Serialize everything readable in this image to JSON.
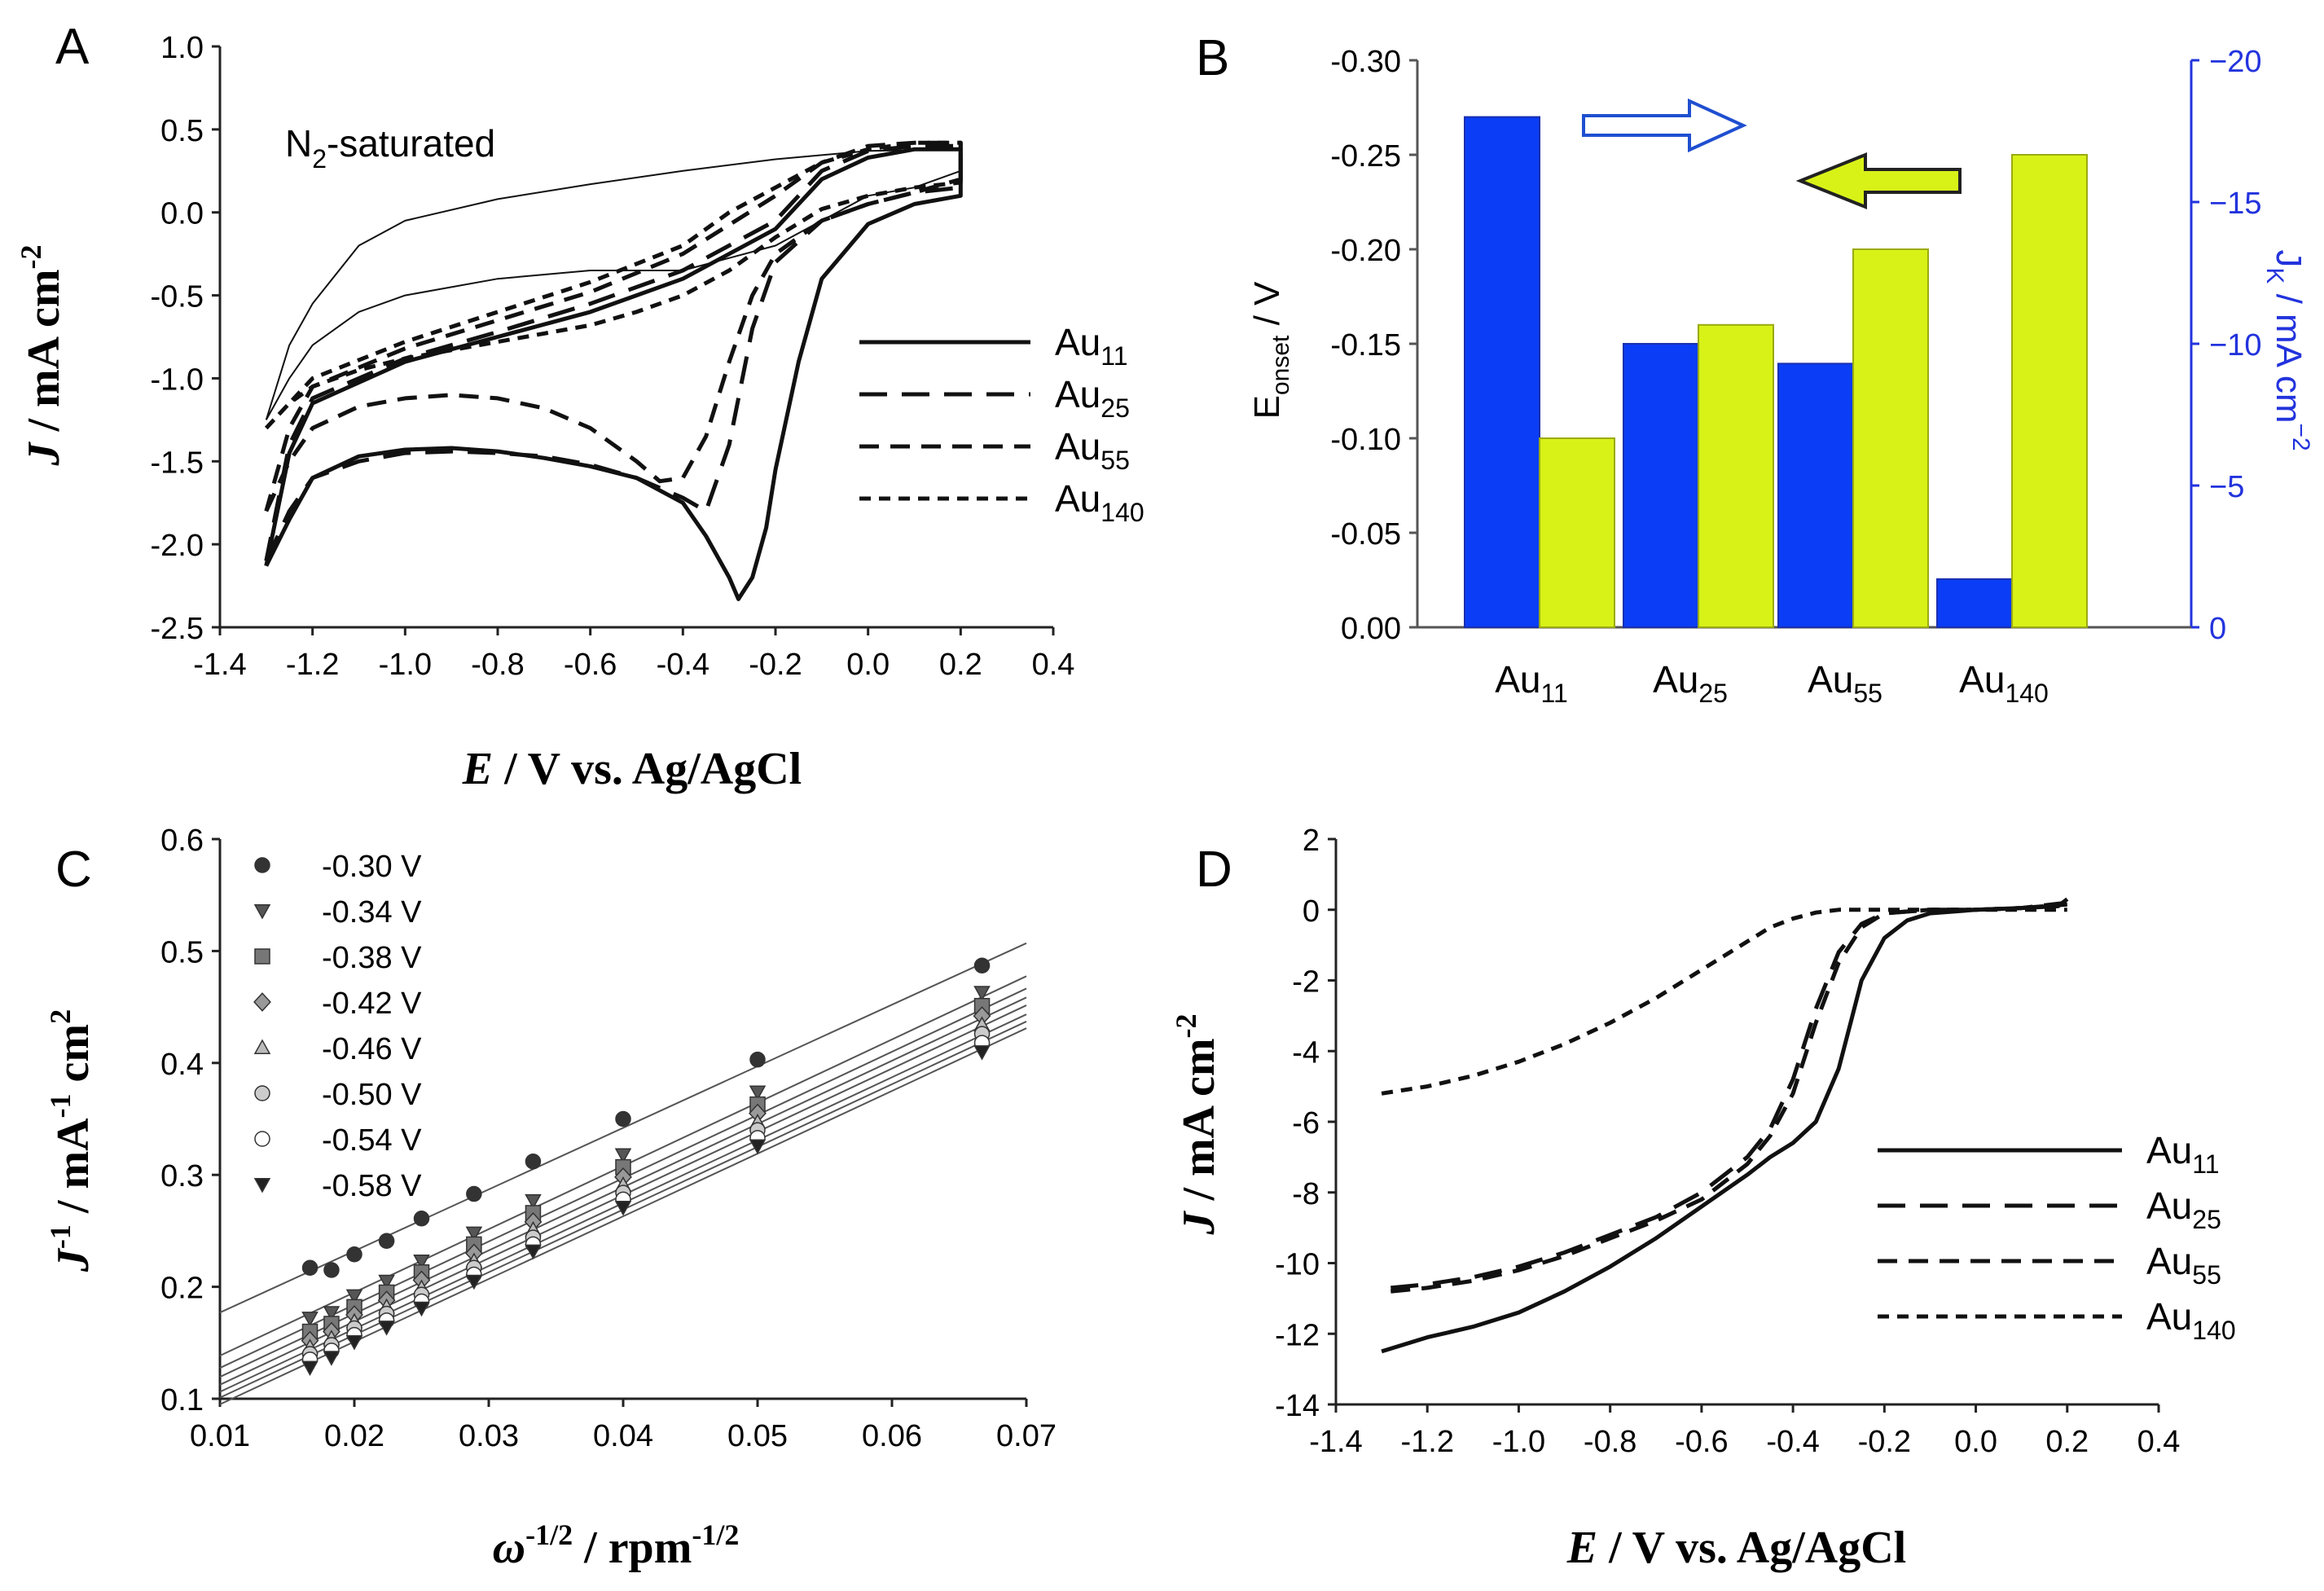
{
  "figure": {
    "panel_labels": [
      "A",
      "B",
      "C",
      "D"
    ]
  },
  "chart_data": [
    {
      "panel": "A",
      "type": "line",
      "xlabel": {
        "italic": "E",
        "rest": " / V vs. Ag/AgCl"
      },
      "ylabel": {
        "italic": "J",
        "rest": " / mA cm",
        "sup": "-2"
      },
      "xlim": [
        -1.4,
        0.4
      ],
      "ylim": [
        -2.5,
        1.0
      ],
      "xticks": [
        "-1.4",
        "-1.2",
        "-1.0",
        "-0.8",
        "-0.6",
        "-0.4",
        "-0.2",
        "0.0",
        "0.2",
        "0.4"
      ],
      "yticks": [
        "-2.5",
        "-2.0",
        "-1.5",
        "-1.0",
        "-0.5",
        "0.0",
        "0.5",
        "1.0"
      ],
      "annotation": {
        "main": "N",
        "sub": "2",
        "tail": "-saturated"
      },
      "legend": [
        {
          "name": "Au",
          "sub": "11",
          "dash": "solid"
        },
        {
          "name": "Au",
          "sub": "25",
          "dash": "long-dash"
        },
        {
          "name": "Au",
          "sub": "55",
          "dash": "medium-dash"
        },
        {
          "name": "Au",
          "sub": "140",
          "dash": "short-dash"
        }
      ],
      "series": [
        {
          "name": "N2-saturated",
          "style": "thin",
          "x": [
            -1.3,
            -1.25,
            -1.2,
            -1.1,
            -1.0,
            -0.8,
            -0.6,
            -0.4,
            -0.2,
            0.0,
            0.2,
            0.2,
            0.1,
            0.0,
            -0.1,
            -0.2,
            -0.4,
            -0.6,
            -0.8,
            -1.0,
            -1.1,
            -1.2,
            -1.25,
            -1.3
          ],
          "y": [
            -1.25,
            -0.8,
            -0.55,
            -0.2,
            -0.05,
            0.08,
            0.17,
            0.25,
            0.32,
            0.37,
            0.38,
            0.25,
            0.15,
            0.1,
            -0.05,
            -0.2,
            -0.35,
            -0.35,
            -0.4,
            -0.5,
            -0.6,
            -0.8,
            -1.0,
            -1.25
          ]
        },
        {
          "name": "Au11",
          "style": "solid",
          "x": [
            -1.3,
            -1.25,
            -1.2,
            -1.1,
            -1.0,
            -0.9,
            -0.8,
            -0.7,
            -0.6,
            -0.5,
            -0.4,
            -0.35,
            -0.3,
            -0.28,
            -0.25,
            -0.22,
            -0.2,
            -0.15,
            -0.1,
            0.0,
            0.1,
            0.2,
            0.2,
            0.1,
            0.0,
            -0.1,
            -0.2,
            -0.4,
            -0.6,
            -0.8,
            -1.0,
            -1.2,
            -1.25,
            -1.3
          ],
          "y": [
            -2.13,
            -1.85,
            -1.6,
            -1.47,
            -1.43,
            -1.42,
            -1.44,
            -1.48,
            -1.53,
            -1.6,
            -1.75,
            -1.95,
            -2.2,
            -2.33,
            -2.2,
            -1.9,
            -1.55,
            -0.9,
            -0.4,
            -0.07,
            0.05,
            0.1,
            0.38,
            0.38,
            0.33,
            0.2,
            -0.1,
            -0.4,
            -0.6,
            -0.75,
            -0.9,
            -1.15,
            -1.45,
            -2.13
          ]
        },
        {
          "name": "Au25",
          "style": "long-dash",
          "x": [
            -1.3,
            -1.25,
            -1.2,
            -1.1,
            -1.0,
            -0.9,
            -0.8,
            -0.7,
            -0.6,
            -0.5,
            -0.4,
            -0.35,
            -0.3,
            -0.25,
            -0.2,
            -0.1,
            0.0,
            0.1,
            0.2,
            0.2,
            0.1,
            0.0,
            -0.1,
            -0.2,
            -0.4,
            -0.6,
            -0.8,
            -1.0,
            -1.2,
            -1.25,
            -1.3
          ],
          "y": [
            -2.1,
            -1.8,
            -1.6,
            -1.5,
            -1.45,
            -1.44,
            -1.45,
            -1.47,
            -1.52,
            -1.6,
            -1.72,
            -1.8,
            -1.4,
            -0.7,
            -0.3,
            -0.05,
            0.05,
            0.12,
            0.15,
            0.4,
            0.4,
            0.37,
            0.25,
            -0.05,
            -0.35,
            -0.55,
            -0.72,
            -0.88,
            -1.12,
            -1.4,
            -2.1
          ]
        },
        {
          "name": "Au55",
          "style": "medium-dash",
          "x": [
            -1.3,
            -1.25,
            -1.2,
            -1.1,
            -1.0,
            -0.9,
            -0.8,
            -0.7,
            -0.6,
            -0.5,
            -0.45,
            -0.4,
            -0.35,
            -0.3,
            -0.25,
            -0.2,
            -0.1,
            0.0,
            0.1,
            0.2,
            0.2,
            0.1,
            0.0,
            -0.1,
            -0.2,
            -0.4,
            -0.6,
            -0.8,
            -1.0,
            -1.2,
            -1.25,
            -1.3
          ],
          "y": [
            -1.8,
            -1.5,
            -1.3,
            -1.17,
            -1.12,
            -1.1,
            -1.12,
            -1.18,
            -1.3,
            -1.5,
            -1.62,
            -1.6,
            -1.35,
            -0.9,
            -0.5,
            -0.25,
            -0.05,
            0.05,
            0.12,
            0.2,
            0.42,
            0.42,
            0.4,
            0.3,
            0.1,
            -0.25,
            -0.48,
            -0.65,
            -0.82,
            -1.05,
            -1.3,
            -1.8
          ]
        },
        {
          "name": "Au140",
          "style": "short-dash",
          "x": [
            -1.3,
            -1.25,
            -1.2,
            -1.1,
            -1.0,
            -0.9,
            -0.8,
            -0.7,
            -0.6,
            -0.5,
            -0.4,
            -0.3,
            -0.2,
            -0.1,
            0.0,
            0.1,
            0.2,
            0.2,
            0.1,
            0.0,
            -0.1,
            -0.2,
            -0.3,
            -0.4,
            -0.6,
            -0.8,
            -1.0,
            -1.2,
            -1.25,
            -1.3
          ],
          "y": [
            -1.3,
            -1.15,
            -1.05,
            -0.95,
            -0.88,
            -0.83,
            -0.78,
            -0.73,
            -0.68,
            -0.6,
            -0.5,
            -0.35,
            -0.15,
            0.02,
            0.1,
            0.15,
            0.18,
            0.42,
            0.42,
            0.38,
            0.3,
            0.15,
            0.0,
            -0.2,
            -0.42,
            -0.6,
            -0.78,
            -1.0,
            -1.15,
            -1.3
          ]
        }
      ]
    },
    {
      "panel": "B",
      "type": "bar",
      "categories": [
        {
          "name": "Au",
          "sub": "11"
        },
        {
          "name": "Au",
          "sub": "25"
        },
        {
          "name": "Au",
          "sub": "55"
        },
        {
          "name": "Au",
          "sub": "140"
        }
      ],
      "series": [
        {
          "name": "Jk",
          "axis": "right",
          "color": "#0a3df5",
          "values": [
            -18,
            -10,
            -9.3,
            -1.7
          ]
        },
        {
          "name": "Eonset",
          "axis": "left",
          "color": "#d8f218",
          "values": [
            -0.1,
            -0.16,
            -0.2,
            -0.25
          ]
        }
      ],
      "ylabel_left": {
        "main": "E",
        "sub": "onset",
        "tail": " / V"
      },
      "ylabel_right": {
        "main": "J",
        "sub": "K",
        "tail": " / mA cm",
        "sup": "−2"
      },
      "ylim_left": [
        0,
        -0.3
      ],
      "ylim_right": [
        0,
        -20
      ],
      "yticks_left": [
        "0.00",
        "-0.05",
        "-0.10",
        "-0.15",
        "-0.20",
        "-0.25",
        "-0.30"
      ],
      "yticks_right": [
        "0",
        "−5",
        "−10",
        "−15",
        "−20"
      ],
      "right_axis_color": "#2233dd"
    },
    {
      "panel": "C",
      "type": "scatter",
      "xlabel": {
        "italic": "ω",
        "sup1": "-1/2",
        "rest": " / rpm",
        "sup2": "-1/2"
      },
      "ylabel": {
        "italic": "J",
        "sup1": "-1",
        "rest": " / mA",
        "sup2": "-1",
        "rest2": " cm",
        "sup3": "2"
      },
      "xlim": [
        0.01,
        0.07
      ],
      "ylim": [
        0.1,
        0.6
      ],
      "xticks": [
        "0.01",
        "0.02",
        "0.03",
        "0.04",
        "0.05",
        "0.06",
        "0.07"
      ],
      "yticks": [
        "0.1",
        "0.2",
        "0.3",
        "0.4",
        "0.5",
        "0.6"
      ],
      "x": [
        0.0167,
        0.0183,
        0.02,
        0.0224,
        0.025,
        0.0289,
        0.0333,
        0.04,
        0.05,
        0.0667
      ],
      "series": [
        {
          "name": "-0.30 V",
          "marker": "circle",
          "fill": "#333333",
          "y": [
            0.217,
            0.215,
            0.229,
            0.241,
            0.261,
            0.283,
            0.312,
            0.35,
            0.403,
            0.487
          ],
          "fit_slope": 5.5,
          "fit_intercept": 0.122
        },
        {
          "name": "-0.34 V",
          "marker": "triangle-down",
          "fill": "#555555",
          "y": [
            0.172,
            0.177,
            0.192,
            0.205,
            0.223,
            0.248,
            0.277,
            0.318,
            0.374,
            0.463
          ],
          "fit_slope": 5.65,
          "fit_intercept": 0.082
        },
        {
          "name": "-0.38 V",
          "marker": "square",
          "fill": "#777777",
          "y": [
            0.16,
            0.167,
            0.182,
            0.195,
            0.213,
            0.238,
            0.266,
            0.307,
            0.363,
            0.451
          ],
          "fit_slope": 5.65,
          "fit_intercept": 0.071
        },
        {
          "name": "-0.42 V",
          "marker": "diamond",
          "fill": "#999999",
          "y": [
            0.152,
            0.16,
            0.175,
            0.188,
            0.206,
            0.23,
            0.258,
            0.298,
            0.355,
            0.442
          ],
          "fit_slope": 5.65,
          "fit_intercept": 0.063
        },
        {
          "name": "-0.46 V",
          "marker": "triangle-up",
          "fill": "#bbbbbb",
          "y": [
            0.146,
            0.154,
            0.169,
            0.182,
            0.199,
            0.223,
            0.251,
            0.291,
            0.347,
            0.434
          ],
          "fit_slope": 5.65,
          "fit_intercept": 0.056
        },
        {
          "name": "-0.50 V",
          "marker": "circle",
          "fill": "#cccccc",
          "y": [
            0.14,
            0.148,
            0.163,
            0.176,
            0.193,
            0.217,
            0.244,
            0.284,
            0.34,
            0.426
          ],
          "fit_slope": 5.62,
          "fit_intercept": 0.05
        },
        {
          "name": "-0.54 V",
          "marker": "circle",
          "fill": "#ffffff",
          "y": [
            0.135,
            0.143,
            0.157,
            0.17,
            0.187,
            0.211,
            0.238,
            0.278,
            0.333,
            0.418
          ],
          "fit_slope": 5.6,
          "fit_intercept": 0.045
        },
        {
          "name": "-0.58 V",
          "marker": "triangle-down",
          "fill": "#222222",
          "y": [
            0.128,
            0.137,
            0.151,
            0.164,
            0.181,
            0.205,
            0.232,
            0.271,
            0.326,
            0.41
          ],
          "fit_slope": 5.6,
          "fit_intercept": 0.039
        }
      ]
    },
    {
      "panel": "D",
      "type": "line",
      "xlabel": {
        "italic": "E",
        "rest": " / V vs. Ag/AgCl"
      },
      "ylabel": {
        "italic": "J",
        "rest": " / mA cm",
        "sup": "-2"
      },
      "xlim": [
        -1.4,
        0.4
      ],
      "ylim": [
        -14,
        2
      ],
      "xticks": [
        "-1.4",
        "-1.2",
        "-1.0",
        "-0.8",
        "-0.6",
        "-0.4",
        "-0.2",
        "0.0",
        "0.2",
        "0.4"
      ],
      "yticks": [
        "-14",
        "-12",
        "-10",
        "-8",
        "-6",
        "-4",
        "-2",
        "0",
        "2"
      ],
      "legend": [
        {
          "name": "Au",
          "sub": "11",
          "dash": "solid"
        },
        {
          "name": "Au",
          "sub": "25",
          "dash": "long-dash"
        },
        {
          "name": "Au",
          "sub": "55",
          "dash": "medium-dash"
        },
        {
          "name": "Au",
          "sub": "140",
          "dash": "short-dash"
        }
      ],
      "series": [
        {
          "name": "Au11",
          "style": "solid",
          "x": [
            -1.3,
            -1.2,
            -1.1,
            -1.0,
            -0.9,
            -0.8,
            -0.7,
            -0.6,
            -0.5,
            -0.45,
            -0.4,
            -0.35,
            -0.3,
            -0.27,
            -0.25,
            -0.2,
            -0.15,
            -0.1,
            0.0,
            0.1,
            0.18,
            0.2
          ],
          "y": [
            -12.5,
            -12.1,
            -11.8,
            -11.4,
            -10.8,
            -10.1,
            -9.3,
            -8.4,
            -7.5,
            -7.0,
            -6.6,
            -6.0,
            -4.5,
            -3.0,
            -2.0,
            -0.8,
            -0.3,
            -0.1,
            0.0,
            0.05,
            0.1,
            0.3
          ]
        },
        {
          "name": "Au25",
          "style": "long-dash",
          "x": [
            -1.28,
            -1.2,
            -1.1,
            -1.0,
            -0.9,
            -0.8,
            -0.7,
            -0.6,
            -0.5,
            -0.45,
            -0.4,
            -0.35,
            -0.3,
            -0.25,
            -0.2,
            -0.1,
            0.0,
            0.1,
            0.2
          ],
          "y": [
            -10.7,
            -10.6,
            -10.4,
            -10.1,
            -9.7,
            -9.2,
            -8.7,
            -8.0,
            -7.0,
            -6.2,
            -4.8,
            -2.8,
            -1.2,
            -0.4,
            -0.1,
            0.0,
            0.0,
            0.05,
            0.15
          ]
        },
        {
          "name": "Au55",
          "style": "medium-dash",
          "x": [
            -1.28,
            -1.2,
            -1.1,
            -1.0,
            -0.9,
            -0.8,
            -0.7,
            -0.6,
            -0.5,
            -0.45,
            -0.4,
            -0.35,
            -0.3,
            -0.25,
            -0.2,
            -0.1,
            0.0,
            0.1,
            0.2
          ],
          "y": [
            -10.8,
            -10.7,
            -10.5,
            -10.2,
            -9.8,
            -9.3,
            -8.8,
            -8.2,
            -7.2,
            -6.4,
            -5.2,
            -3.2,
            -1.5,
            -0.5,
            -0.1,
            0.0,
            0.0,
            0.05,
            0.2
          ]
        },
        {
          "name": "Au140",
          "style": "short-dash",
          "x": [
            -1.3,
            -1.2,
            -1.1,
            -1.0,
            -0.9,
            -0.8,
            -0.7,
            -0.6,
            -0.5,
            -0.45,
            -0.4,
            -0.35,
            -0.3,
            -0.2,
            -0.1,
            0.0,
            0.1,
            0.2
          ],
          "y": [
            -5.2,
            -5.0,
            -4.7,
            -4.3,
            -3.8,
            -3.2,
            -2.5,
            -1.7,
            -0.9,
            -0.5,
            -0.25,
            -0.08,
            0.0,
            0.0,
            0.0,
            0.0,
            0.0,
            0.0
          ]
        }
      ]
    }
  ]
}
